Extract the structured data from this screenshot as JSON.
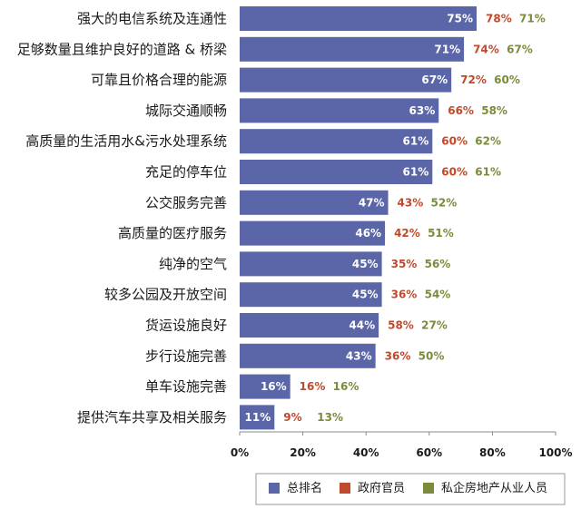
{
  "chart_data": {
    "type": "bar",
    "orientation": "horizontal",
    "categories": [
      "强大的电信系统及连通性",
      "足够数量且维护良好的道路 & 桥梁",
      "可靠且价格合理的能源",
      "城际交通顺畅",
      "高质量的生活用水&污水处理系统",
      "充足的停车位",
      "公交服务完善",
      "高质量的医疗服务",
      "纯净的空气",
      "较多公园及开放空间",
      "货运设施良好",
      "步行设施完善",
      "单车设施完善",
      "提供汽车共享及相关服务"
    ],
    "series": [
      {
        "name": "总排名",
        "values": [
          75,
          71,
          67,
          63,
          61,
          61,
          47,
          46,
          45,
          45,
          44,
          43,
          16,
          11
        ],
        "color": "#5a66a8",
        "display": "bar"
      },
      {
        "name": "政府官员",
        "values": [
          78,
          74,
          72,
          66,
          60,
          60,
          43,
          42,
          35,
          36,
          58,
          36,
          16,
          9
        ],
        "color": "#c0492b",
        "display": "label"
      },
      {
        "name": "私企房地产从业人员",
        "values": [
          71,
          67,
          60,
          58,
          62,
          61,
          52,
          51,
          56,
          54,
          27,
          50,
          16,
          13
        ],
        "color": "#7a8c3c",
        "display": "label"
      }
    ],
    "value_suffix": "%",
    "xlim": [
      0,
      100
    ],
    "xticks": [
      "0%",
      "20%",
      "40%",
      "60%",
      "80%",
      "100%"
    ],
    "grid": false,
    "legend_position": "bottom-right",
    "colors": {
      "axis": "#888888",
      "legend_border": "#999999"
    }
  }
}
